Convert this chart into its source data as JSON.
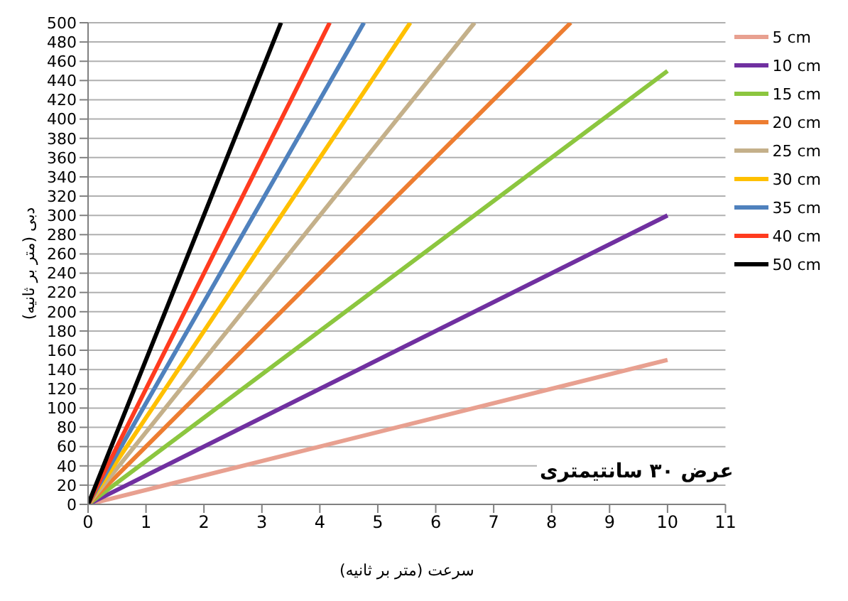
{
  "chart_data": {
    "type": "line",
    "xlabel": "سرعت (متر بر ثانیه)",
    "ylabel": "دبی (متر بر ثانیه)",
    "annotations": [
      "عرض ۳۰ سانتیمتری"
    ],
    "xlim": [
      0,
      11
    ],
    "xticks": [
      0,
      1,
      2,
      3,
      4,
      5,
      6,
      7,
      8,
      9,
      10,
      11
    ],
    "ylim": [
      0,
      500
    ],
    "yticks": [
      0,
      20,
      40,
      60,
      80,
      100,
      120,
      140,
      160,
      180,
      200,
      220,
      240,
      260,
      280,
      300,
      320,
      340,
      360,
      380,
      400,
      420,
      440,
      460,
      480,
      500
    ],
    "grid": "y",
    "legend": "right",
    "marker": "none",
    "line_style": "solid",
    "series": [
      {
        "name": "5 cm",
        "color": "#e8a090",
        "x": [
          0,
          10
        ],
        "values": [
          0,
          150
        ]
      },
      {
        "name": "10 cm",
        "color": "#7030a0",
        "x": [
          0,
          10
        ],
        "values": [
          0,
          300
        ]
      },
      {
        "name": "15 cm",
        "color": "#8cc63f",
        "x": [
          0,
          10
        ],
        "values": [
          0,
          450
        ]
      },
      {
        "name": "20 cm",
        "color": "#ed7d31",
        "x": [
          0,
          8.33
        ],
        "values": [
          0,
          500
        ]
      },
      {
        "name": "25 cm",
        "color": "#c4b08a",
        "x": [
          0,
          6.67
        ],
        "values": [
          0,
          500
        ]
      },
      {
        "name": "30 cm",
        "color": "#ffc000",
        "x": [
          0,
          5.56
        ],
        "values": [
          0,
          500
        ]
      },
      {
        "name": "35 cm",
        "color": "#4f81bd",
        "x": [
          0,
          4.76
        ],
        "values": [
          0,
          500
        ]
      },
      {
        "name": "40 cm",
        "color": "#ff3b1f",
        "x": [
          0,
          4.17
        ],
        "values": [
          0,
          500
        ]
      },
      {
        "name": "50 cm",
        "color": "#000000",
        "x": [
          0,
          3.33
        ],
        "values": [
          0,
          500
        ]
      }
    ]
  }
}
